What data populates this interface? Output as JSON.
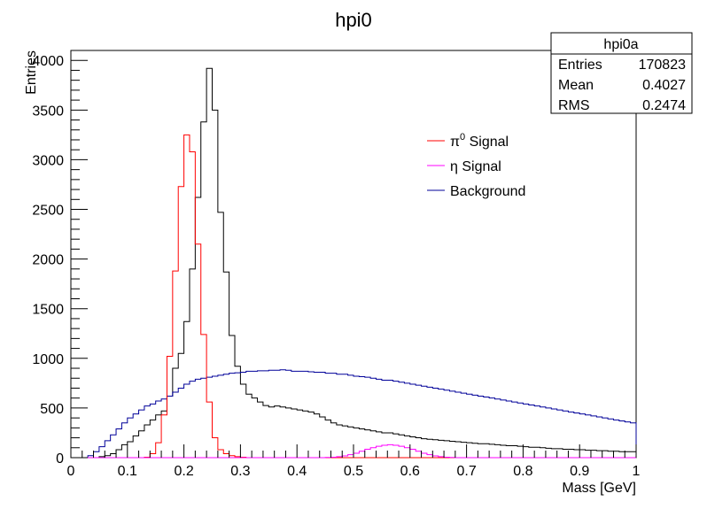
{
  "chart_data": {
    "type": "histogram",
    "title": "hpi0",
    "xlabel": "Mass [GeV]",
    "ylabel": "Entries",
    "xlim": [
      0,
      1
    ],
    "ylim": [
      0,
      4100
    ],
    "grid": false,
    "x_ticks": [
      "0",
      "0.1",
      "0.2",
      "0.3",
      "0.4",
      "0.5",
      "0.6",
      "0.7",
      "0.8",
      "0.9",
      "1"
    ],
    "y_ticks": [
      "0",
      "500",
      "1000",
      "1500",
      "2000",
      "2500",
      "3000",
      "3500",
      "4000"
    ],
    "bin_width": 0.01,
    "stats_box": {
      "name": "hpi0a",
      "rows": [
        {
          "label": "Entries",
          "value": "170823"
        },
        {
          "label": "Mean",
          "value": "0.4027"
        },
        {
          "label": "RMS",
          "value": "0.2474"
        }
      ]
    },
    "legend": {
      "placement": "top-right",
      "entries": [
        {
          "pre": "π",
          "sup": "0",
          "post": " Signal",
          "series": "pi0_signal"
        },
        {
          "pre": "η",
          "sup": "",
          "post": " Signal",
          "series": "eta_signal"
        },
        {
          "pre": "Background",
          "sup": "",
          "post": "",
          "series": "background"
        }
      ]
    },
    "series": [
      {
        "id": "total",
        "color": "#000000",
        "values": [
          0,
          0,
          0,
          0,
          0,
          10,
          20,
          40,
          80,
          130,
          160,
          220,
          270,
          330,
          380,
          430,
          470,
          620,
          900,
          1050,
          1370,
          1900,
          2620,
          3380,
          3920,
          3500,
          2470,
          1870,
          1230,
          920,
          740,
          640,
          600,
          560,
          525,
          510,
          520,
          510,
          500,
          490,
          480,
          470,
          460,
          440,
          410,
          380,
          350,
          330,
          320,
          310,
          300,
          290,
          280,
          270,
          260,
          250,
          250,
          240,
          230,
          220,
          210,
          200,
          190,
          185,
          180,
          175,
          170,
          165,
          160,
          155,
          150,
          145,
          140,
          140,
          135,
          130,
          125,
          120,
          120,
          115,
          110,
          105,
          105,
          100,
          95,
          90,
          90,
          85,
          85,
          80,
          80,
          75,
          75,
          70,
          70,
          65,
          65,
          60,
          60,
          60
        ]
      },
      {
        "id": "background",
        "color": "#000099",
        "values": [
          0,
          0,
          0,
          20,
          60,
          110,
          170,
          230,
          290,
          350,
          400,
          440,
          480,
          520,
          540,
          570,
          590,
          620,
          660,
          700,
          740,
          770,
          790,
          800,
          810,
          820,
          830,
          840,
          850,
          855,
          860,
          870,
          870,
          875,
          875,
          880,
          880,
          885,
          880,
          870,
          870,
          870,
          865,
          860,
          860,
          850,
          850,
          840,
          840,
          830,
          820,
          815,
          810,
          800,
          790,
          780,
          780,
          770,
          760,
          750,
          740,
          730,
          720,
          710,
          700,
          690,
          680,
          670,
          660,
          650,
          640,
          630,
          620,
          610,
          600,
          590,
          580,
          570,
          560,
          550,
          540,
          530,
          520,
          510,
          500,
          490,
          480,
          470,
          460,
          450,
          440,
          430,
          420,
          410,
          400,
          390,
          380,
          370,
          360,
          350
        ]
      },
      {
        "id": "pi0_signal",
        "color": "#ff0000",
        "values": [
          0,
          0,
          0,
          0,
          0,
          0,
          0,
          0,
          0,
          0,
          0,
          0,
          0,
          5,
          40,
          150,
          430,
          1020,
          1880,
          2730,
          3250,
          3080,
          2150,
          1240,
          560,
          200,
          80,
          40,
          20,
          10,
          5,
          0,
          0,
          0,
          0,
          0,
          0,
          0,
          0,
          0,
          0,
          0,
          0,
          0,
          0,
          0,
          0,
          0,
          0,
          0,
          0,
          0,
          0,
          0,
          0,
          0,
          0,
          0,
          0,
          0,
          0,
          0,
          0,
          0,
          0,
          0,
          0,
          0,
          0,
          0,
          0,
          0,
          0,
          0,
          0,
          0,
          0,
          0,
          0,
          0,
          0,
          0,
          0,
          0,
          0,
          0,
          0,
          0,
          0,
          0,
          0,
          0,
          0,
          0,
          0,
          0,
          0,
          0,
          0,
          0
        ]
      },
      {
        "id": "eta_signal",
        "color": "#ff00ff",
        "values": [
          0,
          0,
          0,
          0,
          0,
          0,
          0,
          0,
          0,
          0,
          0,
          0,
          0,
          0,
          0,
          0,
          0,
          0,
          0,
          0,
          0,
          0,
          0,
          0,
          0,
          0,
          0,
          0,
          0,
          0,
          0,
          0,
          0,
          0,
          0,
          0,
          0,
          0,
          0,
          0,
          0,
          0,
          0,
          0,
          0,
          2,
          5,
          10,
          18,
          30,
          45,
          65,
          85,
          100,
          115,
          125,
          130,
          125,
          115,
          100,
          85,
          65,
          45,
          30,
          18,
          10,
          5,
          2,
          0,
          0,
          0,
          0,
          0,
          0,
          0,
          0,
          0,
          0,
          0,
          0,
          0,
          0,
          0,
          0,
          0,
          0,
          0,
          0,
          0,
          0,
          0,
          0,
          0,
          0,
          0,
          0,
          0,
          0,
          0,
          0
        ]
      }
    ]
  }
}
